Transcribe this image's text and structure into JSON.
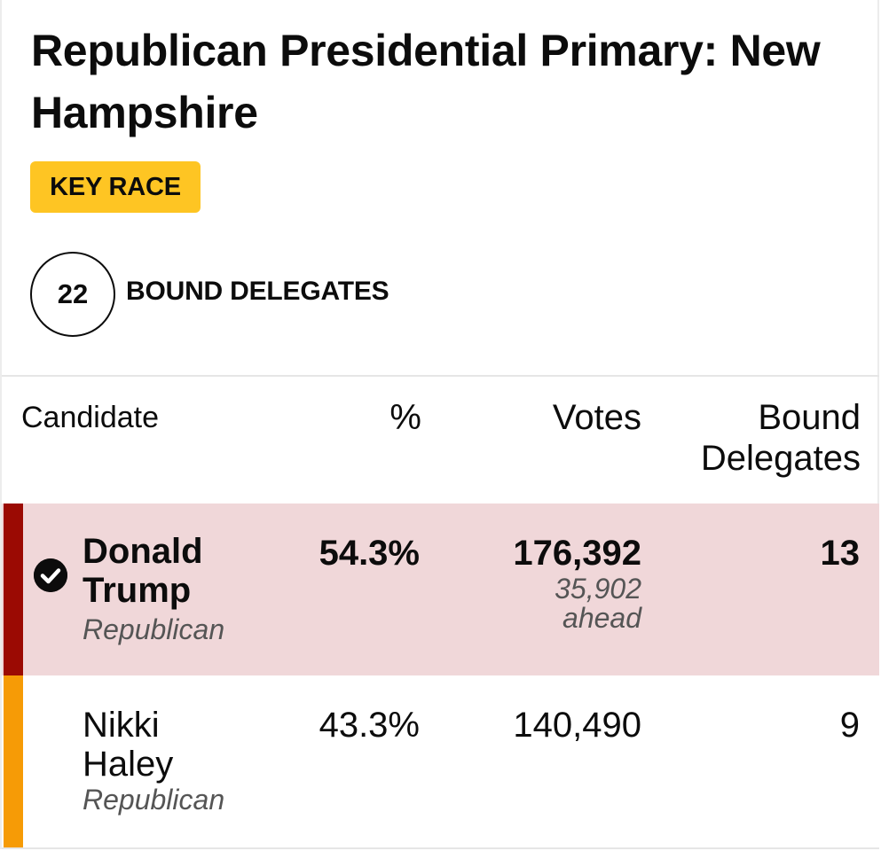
{
  "header": {
    "title": "Republican Presidential Primary: New Hampshire",
    "badge": "KEY RACE"
  },
  "delegates": {
    "count": "22",
    "label": "BOUND DELEGATES"
  },
  "table": {
    "columns": {
      "candidate": "Candidate",
      "percent": "%",
      "votes": "Votes",
      "bound_delegates": "Bound Delegates"
    },
    "rows": [
      {
        "name": "Donald Trump",
        "party": "Republican",
        "percent": "54.3%",
        "votes": "176,392",
        "lead_amount": "35,902",
        "lead_text": "ahead",
        "bound_delegates": "13",
        "winner": true,
        "row_color": "#f0d7d9",
        "bar_color": "#9b0a03"
      },
      {
        "name": "Nikki Haley",
        "party": "Republican",
        "percent": "43.3%",
        "votes": "140,490",
        "bound_delegates": "9",
        "winner": false,
        "row_color": "#ffffff",
        "bar_color": "#f69b06"
      }
    ]
  },
  "colors": {
    "badge": "#fec523",
    "text": "#0c0c0c",
    "muted": "#555555"
  },
  "icons": {
    "winner": "checkmark-circle-icon"
  }
}
